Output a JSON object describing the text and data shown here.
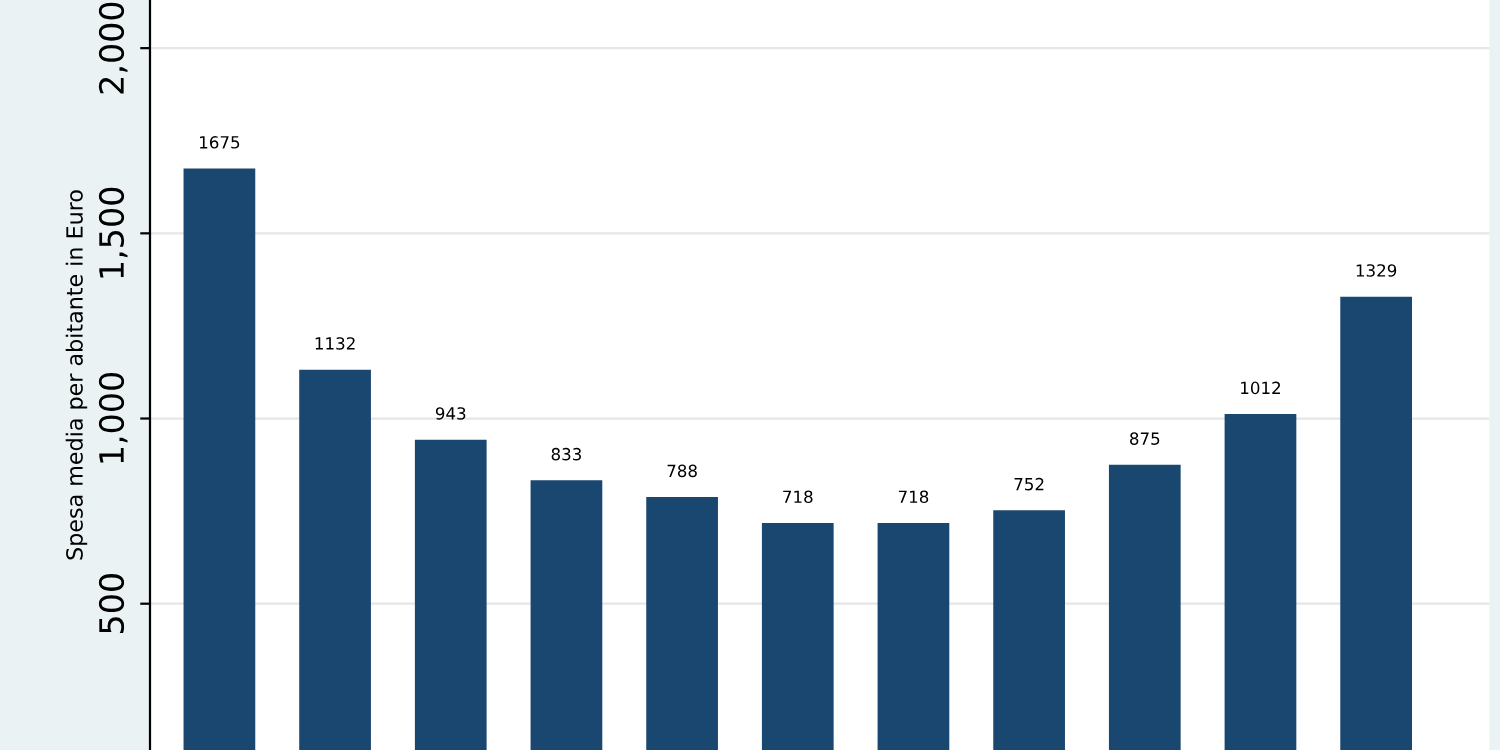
{
  "chart_data": {
    "type": "bar",
    "ylabel": "Spesa media per abitante in Euro",
    "categories": [
      null,
      null,
      null,
      null,
      null,
      null,
      null,
      null,
      null,
      null,
      null
    ],
    "values": [
      1675,
      1132,
      943,
      833,
      788,
      718,
      718,
      752,
      875,
      1012,
      1329
    ],
    "color": "#1a476f",
    "ylim": [
      105,
      2130
    ],
    "yticks": [
      {
        "value": 500,
        "label": "500"
      },
      {
        "value": 1000,
        "label": "1,000"
      },
      {
        "value": 1500,
        "label": "1,500"
      },
      {
        "value": 2000,
        "label": "2,000"
      }
    ],
    "grid": "y",
    "data_labels": true
  }
}
